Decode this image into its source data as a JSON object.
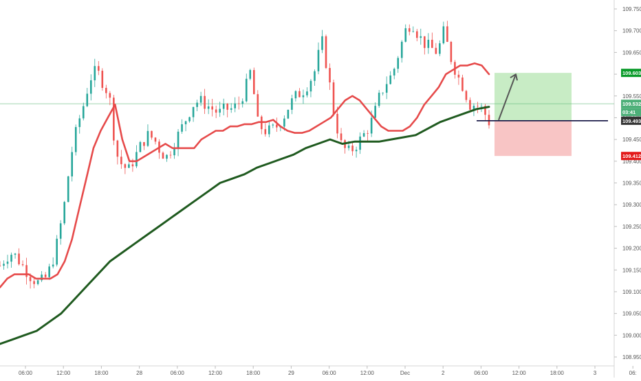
{
  "chart_data": {
    "type": "candlestick",
    "y_ticks": [
      "109.750",
      "109.700",
      "109.650",
      "109.600",
      "109.550",
      "109.500",
      "109.450",
      "109.400",
      "109.350",
      "109.300",
      "109.250",
      "109.200",
      "109.150",
      "109.100",
      "109.050",
      "109.000",
      "108.950"
    ],
    "x_ticks": [
      {
        "label": "06:00",
        "t": 6
      },
      {
        "label": "12:00",
        "t": 12
      },
      {
        "label": "18:00",
        "t": 18
      },
      {
        "label": "28",
        "t": 24
      },
      {
        "label": "06:00",
        "t": 30
      },
      {
        "label": "12:00",
        "t": 36
      },
      {
        "label": "18:00",
        "t": 42
      },
      {
        "label": "29",
        "t": 48
      },
      {
        "label": "06:00",
        "t": 54
      },
      {
        "label": "12:00",
        "t": 60
      },
      {
        "label": "Dec",
        "t": 66
      },
      {
        "label": "2",
        "t": 72
      },
      {
        "label": "06:00",
        "t": 78
      },
      {
        "label": "12:00",
        "t": 84
      },
      {
        "label": "18:00",
        "t": 90
      },
      {
        "label": "3",
        "t": 96
      },
      {
        "label": "06:",
        "t": 102
      }
    ],
    "ylim": [
      108.94,
      109.76
    ],
    "price_close": [
      109.16,
      109.18,
      109.19,
      109.17,
      109.15,
      109.13,
      109.12,
      109.13,
      109.16,
      109.22,
      109.3,
      109.41,
      109.48,
      109.53,
      109.59,
      109.61,
      109.58,
      109.55,
      109.42,
      109.39,
      109.38,
      109.41,
      109.44,
      109.46,
      109.45,
      109.42,
      109.41,
      109.44,
      109.47,
      109.5,
      109.53,
      109.54,
      109.53,
      109.52,
      109.51,
      109.52,
      109.52,
      109.53,
      109.56,
      109.61,
      109.49,
      109.47,
      109.47,
      109.48,
      109.5,
      109.53,
      109.55,
      109.56,
      109.58,
      109.61,
      109.68,
      109.6,
      109.5,
      109.44,
      109.42,
      109.43,
      109.45,
      109.47,
      109.5,
      109.55,
      109.58,
      109.6,
      109.65,
      109.7,
      109.72,
      109.69,
      109.67,
      109.66,
      109.65,
      109.7,
      109.64,
      109.6,
      109.57,
      109.53,
      109.53,
      109.52,
      109.49
    ],
    "ema_fast": [
      109.11,
      109.13,
      109.14,
      109.14,
      109.14,
      109.13,
      109.13,
      109.13,
      109.14,
      109.17,
      109.22,
      109.29,
      109.36,
      109.43,
      109.47,
      109.5,
      109.53,
      109.45,
      109.4,
      109.4,
      109.41,
      109.42,
      109.43,
      109.44,
      109.43,
      109.43,
      109.43,
      109.43,
      109.45,
      109.46,
      109.47,
      109.47,
      109.48,
      109.48,
      109.485,
      109.485,
      109.49,
      109.49,
      109.495,
      109.48,
      109.47,
      109.465,
      109.465,
      109.47,
      109.48,
      109.49,
      109.5,
      109.52,
      109.54,
      109.55,
      109.54,
      109.52,
      109.5,
      109.48,
      109.47,
      109.47,
      109.47,
      109.48,
      109.5,
      109.53,
      109.55,
      109.57,
      109.6,
      109.61,
      109.62,
      109.62,
      109.625,
      109.62,
      109.6
    ],
    "ema_slow": [
      108.98,
      108.99,
      109,
      109.01,
      109.03,
      109.05,
      109.08,
      109.11,
      109.14,
      109.17,
      109.19,
      109.21,
      109.23,
      109.25,
      109.27,
      109.29,
      109.31,
      109.33,
      109.35,
      109.36,
      109.37,
      109.385,
      109.395,
      109.405,
      109.415,
      109.43,
      109.44,
      109.45,
      109.44,
      109.445,
      109.445,
      109.445,
      109.45,
      109.455,
      109.46,
      109.475,
      109.49,
      109.5,
      109.51,
      109.52,
      109.525
    ],
    "entry": 109.493,
    "take_profit": 109.603,
    "stop_loss": 109.412,
    "last_price": 109.532,
    "countdown": "03:41",
    "colors": {
      "ema_fast": "#e64a4a",
      "ema_slow": "#1f5a1f",
      "candle_up": "#26a69a",
      "candle_down": "#ef5350",
      "profit_zone": "#c8ecc5",
      "loss_zone": "#f8c5c5",
      "entry_line": "#1c1c4a",
      "last_price_line": "#5fb87a",
      "arrow": "#555555",
      "tp_label": "#0a9b2a",
      "sl_label": "#e31a1a",
      "entry_label": "#333333",
      "last_label": "#4caf78"
    }
  }
}
